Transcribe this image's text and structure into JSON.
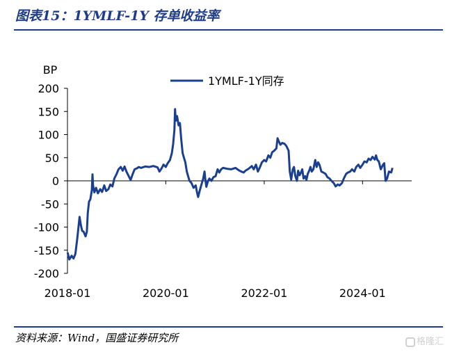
{
  "header": {
    "title": "图表15：1YMLF-1Y 存单收益率"
  },
  "footer": {
    "source": "资料来源：Wind，国盛证券研究所"
  },
  "watermark": {
    "text": "格隆汇"
  },
  "colors": {
    "series": "#1a3f8f",
    "title": "#1f3c88",
    "rule": "#1f3c88"
  },
  "chart_data": {
    "type": "line",
    "title": "",
    "xlabel": "",
    "ylabel": "BP",
    "ylim": [
      -200,
      200
    ],
    "yticks": [
      -200,
      -150,
      -100,
      -50,
      0,
      50,
      100,
      150,
      200
    ],
    "xticks": [
      "2018-01",
      "2020-01",
      "2022-01",
      "2024-01"
    ],
    "xlim": [
      "2018-01-01",
      "2024-12-31"
    ],
    "legend": "top-center",
    "grid": false,
    "series": [
      {
        "name": "1YMLF-1Y同存",
        "points": [
          [
            "2018-01-02",
            -155
          ],
          [
            "2018-01-15",
            -170
          ],
          [
            "2018-02-01",
            -162
          ],
          [
            "2018-02-15",
            -168
          ],
          [
            "2018-03-01",
            -158
          ],
          [
            "2018-03-15",
            -125
          ],
          [
            "2018-04-01",
            -78
          ],
          [
            "2018-04-10",
            -95
          ],
          [
            "2018-04-20",
            -108
          ],
          [
            "2018-05-01",
            -110
          ],
          [
            "2018-05-15",
            -120
          ],
          [
            "2018-05-25",
            -110
          ],
          [
            "2018-06-01",
            -70
          ],
          [
            "2018-06-10",
            -45
          ],
          [
            "2018-06-20",
            -40
          ],
          [
            "2018-07-01",
            -20
          ],
          [
            "2018-07-06",
            14
          ],
          [
            "2018-07-10",
            -10
          ],
          [
            "2018-07-20",
            -25
          ],
          [
            "2018-08-01",
            -15
          ],
          [
            "2018-08-15",
            -27
          ],
          [
            "2018-09-01",
            -18
          ],
          [
            "2018-09-15",
            -24
          ],
          [
            "2018-10-01",
            -10
          ],
          [
            "2018-10-15",
            -22
          ],
          [
            "2018-11-01",
            -18
          ],
          [
            "2018-11-15",
            -8
          ],
          [
            "2018-12-01",
            -12
          ],
          [
            "2018-12-15",
            5
          ],
          [
            "2019-01-01",
            15
          ],
          [
            "2019-01-15",
            25
          ],
          [
            "2019-02-01",
            30
          ],
          [
            "2019-02-15",
            22
          ],
          [
            "2019-03-01",
            31
          ],
          [
            "2019-03-15",
            20
          ],
          [
            "2019-04-01",
            10
          ],
          [
            "2019-04-15",
            2
          ],
          [
            "2019-05-01",
            15
          ],
          [
            "2019-05-15",
            25
          ],
          [
            "2019-06-01",
            27
          ],
          [
            "2019-06-15",
            30
          ],
          [
            "2019-07-01",
            28
          ],
          [
            "2019-08-01",
            31
          ],
          [
            "2019-09-01",
            30
          ],
          [
            "2019-10-01",
            32
          ],
          [
            "2019-11-01",
            29
          ],
          [
            "2019-11-15",
            20
          ],
          [
            "2019-12-01",
            27
          ],
          [
            "2019-12-15",
            35
          ],
          [
            "2020-01-01",
            30
          ],
          [
            "2020-01-15",
            38
          ],
          [
            "2020-02-01",
            45
          ],
          [
            "2020-02-15",
            60
          ],
          [
            "2020-02-25",
            80
          ],
          [
            "2020-03-05",
            110
          ],
          [
            "2020-03-10",
            155
          ],
          [
            "2020-03-15",
            130
          ],
          [
            "2020-03-25",
            140
          ],
          [
            "2020-04-05",
            120
          ],
          [
            "2020-04-15",
            125
          ],
          [
            "2020-04-25",
            90
          ],
          [
            "2020-05-05",
            60
          ],
          [
            "2020-05-15",
            50
          ],
          [
            "2020-05-25",
            40
          ],
          [
            "2020-06-05",
            20
          ],
          [
            "2020-06-15",
            10
          ],
          [
            "2020-06-25",
            0
          ],
          [
            "2020-07-10",
            -5
          ],
          [
            "2020-07-25",
            -15
          ],
          [
            "2020-08-10",
            -10
          ],
          [
            "2020-08-20",
            -25
          ],
          [
            "2020-08-28",
            -35
          ],
          [
            "2020-09-10",
            -20
          ],
          [
            "2020-09-20",
            -10
          ],
          [
            "2020-10-05",
            5
          ],
          [
            "2020-10-15",
            20
          ],
          [
            "2020-10-20",
            5
          ],
          [
            "2020-10-28",
            -13
          ],
          [
            "2020-11-10",
            0
          ],
          [
            "2020-11-20",
            5
          ],
          [
            "2020-12-05",
            0
          ],
          [
            "2020-12-20",
            8
          ],
          [
            "2021-01-05",
            10
          ],
          [
            "2021-01-20",
            25
          ],
          [
            "2021-02-01",
            18
          ],
          [
            "2021-02-15",
            25
          ],
          [
            "2021-03-01",
            28
          ],
          [
            "2021-04-01",
            26
          ],
          [
            "2021-05-01",
            25
          ],
          [
            "2021-06-01",
            28
          ],
          [
            "2021-07-01",
            22
          ],
          [
            "2021-07-15",
            20
          ],
          [
            "2021-08-01",
            18
          ],
          [
            "2021-08-15",
            22
          ],
          [
            "2021-09-01",
            25
          ],
          [
            "2021-09-15",
            28
          ],
          [
            "2021-10-01",
            32
          ],
          [
            "2021-10-15",
            25
          ],
          [
            "2021-11-01",
            35
          ],
          [
            "2021-11-15",
            20
          ],
          [
            "2021-12-01",
            30
          ],
          [
            "2021-12-15",
            40
          ],
          [
            "2022-01-01",
            45
          ],
          [
            "2022-01-15",
            42
          ],
          [
            "2022-02-01",
            55
          ],
          [
            "2022-02-15",
            50
          ],
          [
            "2022-03-01",
            62
          ],
          [
            "2022-03-15",
            65
          ],
          [
            "2022-04-01",
            70
          ],
          [
            "2022-04-10",
            92
          ],
          [
            "2022-04-20",
            85
          ],
          [
            "2022-05-01",
            78
          ],
          [
            "2022-05-15",
            82
          ],
          [
            "2022-06-01",
            80
          ],
          [
            "2022-06-15",
            75
          ],
          [
            "2022-07-01",
            65
          ],
          [
            "2022-07-10",
            20
          ],
          [
            "2022-07-20",
            3
          ],
          [
            "2022-08-01",
            25
          ],
          [
            "2022-08-10",
            30
          ],
          [
            "2022-08-20",
            10
          ],
          [
            "2022-09-01",
            0
          ],
          [
            "2022-09-10",
            22
          ],
          [
            "2022-09-20",
            12
          ],
          [
            "2022-10-01",
            18
          ],
          [
            "2022-10-10",
            25
          ],
          [
            "2022-10-20",
            5
          ],
          [
            "2022-11-01",
            10
          ],
          [
            "2022-11-10",
            2
          ],
          [
            "2022-11-20",
            15
          ],
          [
            "2022-12-01",
            22
          ],
          [
            "2022-12-10",
            30
          ],
          [
            "2022-12-20",
            20
          ],
          [
            "2023-01-01",
            25
          ],
          [
            "2023-01-15",
            45
          ],
          [
            "2023-01-25",
            30
          ],
          [
            "2023-02-05",
            40
          ],
          [
            "2023-02-15",
            35
          ],
          [
            "2023-03-01",
            20
          ],
          [
            "2023-03-15",
            18
          ],
          [
            "2023-04-01",
            15
          ],
          [
            "2023-04-15",
            8
          ],
          [
            "2023-05-01",
            5
          ],
          [
            "2023-05-15",
            0
          ],
          [
            "2023-06-01",
            -5
          ],
          [
            "2023-06-15",
            -12
          ],
          [
            "2023-07-01",
            -8
          ],
          [
            "2023-07-15",
            -10
          ],
          [
            "2023-08-01",
            -5
          ],
          [
            "2023-08-15",
            5
          ],
          [
            "2023-09-01",
            15
          ],
          [
            "2023-09-15",
            18
          ],
          [
            "2023-10-01",
            20
          ],
          [
            "2023-10-15",
            25
          ],
          [
            "2023-11-01",
            20
          ],
          [
            "2023-11-15",
            30
          ],
          [
            "2023-12-01",
            35
          ],
          [
            "2023-12-15",
            28
          ],
          [
            "2024-01-01",
            35
          ],
          [
            "2024-01-15",
            42
          ],
          [
            "2024-02-01",
            40
          ],
          [
            "2024-02-15",
            48
          ],
          [
            "2024-03-01",
            45
          ],
          [
            "2024-03-15",
            52
          ],
          [
            "2024-04-01",
            46
          ],
          [
            "2024-04-10",
            55
          ],
          [
            "2024-04-20",
            45
          ],
          [
            "2024-05-01",
            42
          ],
          [
            "2024-05-15",
            25
          ],
          [
            "2024-06-01",
            35
          ],
          [
            "2024-06-10",
            38
          ],
          [
            "2024-06-20",
            0
          ],
          [
            "2024-07-01",
            5
          ],
          [
            "2024-07-15",
            20
          ],
          [
            "2024-08-01",
            18
          ],
          [
            "2024-08-10",
            28
          ]
        ]
      }
    ]
  }
}
